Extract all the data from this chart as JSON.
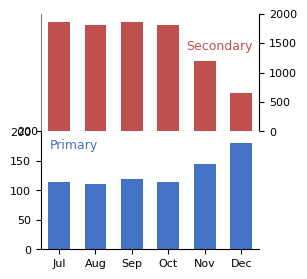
{
  "categories": [
    "Jul",
    "Aug",
    "Sep",
    "Oct",
    "Nov",
    "Dec"
  ],
  "primary_values": [
    115,
    110,
    120,
    115,
    145,
    180
  ],
  "secondary_values": [
    1850,
    1800,
    1850,
    1800,
    1200,
    650
  ],
  "primary_color": "#4472C4",
  "secondary_color": "#C0504D",
  "primary_label": "Primary",
  "secondary_label": "Secondary",
  "primary_ylim": [
    0,
    200
  ],
  "secondary_ylim": [
    0,
    2000
  ],
  "primary_yticks": [
    0,
    50,
    100,
    150,
    200
  ],
  "secondary_yticks": [
    0,
    500,
    1000,
    1500,
    2000
  ],
  "background_color": "#ffffff",
  "label_fontsize": 9,
  "tick_fontsize": 8
}
